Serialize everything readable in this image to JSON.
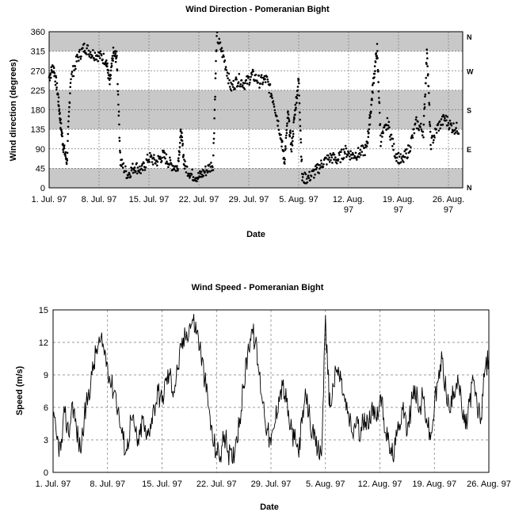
{
  "chart_data": [
    {
      "type": "scatter",
      "title": "Wind Direction - Pomeranian Bight",
      "xlabel": "Date",
      "ylabel": "Wind direction (degrees)",
      "x_ticks": [
        "1. Jul. 97",
        "8. Jul. 97",
        "15. Jul. 97",
        "22. Jul. 97",
        "29. Jul. 97",
        "5. Aug. 97",
        "12. Aug. 97",
        "19. Aug. 97",
        "26. Aug. 97"
      ],
      "x_tick_days": [
        0,
        7,
        14,
        21,
        28,
        35,
        42,
        49,
        56
      ],
      "xlim_days": [
        0,
        58
      ],
      "ylim": [
        0,
        360
      ],
      "y_ticks": [
        "0",
        "45",
        "90",
        "135",
        "180",
        "225",
        "270",
        "315",
        "360"
      ],
      "y_tick_values": [
        0,
        45,
        90,
        135,
        180,
        225,
        270,
        315,
        360
      ],
      "shaded_bands": [
        [
          0,
          45
        ],
        [
          135,
          225
        ],
        [
          315,
          360
        ]
      ],
      "compass_labels": [
        {
          "label": "N",
          "value": 360
        },
        {
          "label": "W",
          "value": 270
        },
        {
          "label": "S",
          "value": 180
        },
        {
          "label": "E",
          "value": 90
        },
        {
          "label": "N",
          "value": 0
        }
      ],
      "series_keypoints": [
        [
          0,
          255
        ],
        [
          0.6,
          280
        ],
        [
          1.2,
          220
        ],
        [
          1.6,
          150
        ],
        [
          2.0,
          95
        ],
        [
          2.5,
          60
        ],
        [
          3.0,
          250
        ],
        [
          4.0,
          300
        ],
        [
          5.0,
          325
        ],
        [
          6.0,
          310
        ],
        [
          7.0,
          305
        ],
        [
          8.0,
          295
        ],
        [
          8.5,
          240
        ],
        [
          9.0,
          310
        ],
        [
          9.5,
          300
        ],
        [
          10.0,
          60
        ],
        [
          11.0,
          30
        ],
        [
          12.0,
          50
        ],
        [
          13.0,
          40
        ],
        [
          14.0,
          70
        ],
        [
          15.0,
          60
        ],
        [
          16.0,
          75
        ],
        [
          17.0,
          55
        ],
        [
          18.0,
          45
        ],
        [
          18.5,
          130
        ],
        [
          19.0,
          50
        ],
        [
          20.0,
          30
        ],
        [
          21.0,
          25
        ],
        [
          22.0,
          40
        ],
        [
          23.0,
          55
        ],
        [
          23.5,
          350
        ],
        [
          24.5,
          300
        ],
        [
          25.5,
          230
        ],
        [
          26.5,
          250
        ],
        [
          27.5,
          240
        ],
        [
          28.5,
          260
        ],
        [
          29.5,
          245
        ],
        [
          30.5,
          250
        ],
        [
          31.5,
          200
        ],
        [
          32.5,
          120
        ],
        [
          33.0,
          60
        ],
        [
          33.5,
          170
        ],
        [
          34.0,
          90
        ],
        [
          34.5,
          180
        ],
        [
          35.0,
          250
        ],
        [
          35.5,
          20
        ],
        [
          36.5,
          25
        ],
        [
          37.5,
          40
        ],
        [
          38.5,
          60
        ],
        [
          39.5,
          70
        ],
        [
          40.5,
          65
        ],
        [
          41.5,
          85
        ],
        [
          42.5,
          75
        ],
        [
          43.5,
          80
        ],
        [
          44.5,
          90
        ],
        [
          45.0,
          160
        ],
        [
          45.5,
          250
        ],
        [
          46.0,
          320
        ],
        [
          46.5,
          110
        ],
        [
          47.5,
          150
        ],
        [
          48.5,
          80
        ],
        [
          49.5,
          60
        ],
        [
          50.5,
          90
        ],
        [
          51.5,
          150
        ],
        [
          52.5,
          130
        ],
        [
          53.0,
          320
        ],
        [
          53.5,
          100
        ],
        [
          54.5,
          140
        ],
        [
          55.5,
          160
        ],
        [
          56.5,
          140
        ],
        [
          57.5,
          135
        ]
      ]
    },
    {
      "type": "line",
      "title": "Wind Speed - Pomeranian Bight",
      "xlabel": "Date",
      "ylabel": "Speed (m/s)",
      "x_ticks": [
        "1. Jul. 97",
        "8. Jul. 97",
        "15. Jul. 97",
        "22. Jul. 97",
        "29. Jul. 97",
        "5. Aug. 97",
        "12. Aug. 97",
        "19. Aug. 97",
        "26. Aug. 97"
      ],
      "x_tick_days": [
        0,
        7,
        14,
        21,
        28,
        35,
        42,
        49,
        56
      ],
      "xlim_days": [
        0,
        56
      ],
      "ylim": [
        0,
        15
      ],
      "y_ticks": [
        "0",
        "3",
        "6",
        "9",
        "12",
        "15"
      ],
      "y_tick_values": [
        0,
        3,
        6,
        9,
        12,
        15
      ],
      "series_keypoints": [
        [
          0,
          5.0
        ],
        [
          0.5,
          3.0
        ],
        [
          1.0,
          2.0
        ],
        [
          1.5,
          5.5
        ],
        [
          2.0,
          3.5
        ],
        [
          2.5,
          6.5
        ],
        [
          3.0,
          4.0
        ],
        [
          3.5,
          2.0
        ],
        [
          4.0,
          5.0
        ],
        [
          4.5,
          7.0
        ],
        [
          5.0,
          9.0
        ],
        [
          5.5,
          11.0
        ],
        [
          6.0,
          12.0
        ],
        [
          6.5,
          11.5
        ],
        [
          7.0,
          10.0
        ],
        [
          7.5,
          8.0
        ],
        [
          8.0,
          7.5
        ],
        [
          8.5,
          5.0
        ],
        [
          9.0,
          3.0
        ],
        [
          9.5,
          2.0
        ],
        [
          10.0,
          5.0
        ],
        [
          10.5,
          4.0
        ],
        [
          11.0,
          2.5
        ],
        [
          11.5,
          5.0
        ],
        [
          12.0,
          3.0
        ],
        [
          12.5,
          4.5
        ],
        [
          13.0,
          6.0
        ],
        [
          13.5,
          7.5
        ],
        [
          14.0,
          6.5
        ],
        [
          14.5,
          8.5
        ],
        [
          15.0,
          9.0
        ],
        [
          15.5,
          7.5
        ],
        [
          16.0,
          9.5
        ],
        [
          16.5,
          11.5
        ],
        [
          17.0,
          12.5
        ],
        [
          17.5,
          13.5
        ],
        [
          18.0,
          14.0
        ],
        [
          18.5,
          13.0
        ],
        [
          19.0,
          11.0
        ],
        [
          19.5,
          8.5
        ],
        [
          20.0,
          6.0
        ],
        [
          20.5,
          3.0
        ],
        [
          21.0,
          2.0
        ],
        [
          21.5,
          1.5
        ],
        [
          22.0,
          3.5
        ],
        [
          22.5,
          2.0
        ],
        [
          23.0,
          1.0
        ],
        [
          23.5,
          3.0
        ],
        [
          24.0,
          5.0
        ],
        [
          24.5,
          8.0
        ],
        [
          25.0,
          11.0
        ],
        [
          25.5,
          13.2
        ],
        [
          26.0,
          12.0
        ],
        [
          26.5,
          9.0
        ],
        [
          27.0,
          6.5
        ],
        [
          27.5,
          4.0
        ],
        [
          28.0,
          2.5
        ],
        [
          28.5,
          4.5
        ],
        [
          29.0,
          7.0
        ],
        [
          29.5,
          8.0
        ],
        [
          30.0,
          6.5
        ],
        [
          30.5,
          4.0
        ],
        [
          31.0,
          3.0
        ],
        [
          31.5,
          2.0
        ],
        [
          32.0,
          4.5
        ],
        [
          32.5,
          7.0
        ],
        [
          33.0,
          5.0
        ],
        [
          33.5,
          3.0
        ],
        [
          34.0,
          2.0
        ],
        [
          34.5,
          1.5
        ],
        [
          35.0,
          14.5
        ],
        [
          35.3,
          9.0
        ],
        [
          35.6,
          6.0
        ],
        [
          36.0,
          8.0
        ],
        [
          36.5,
          9.5
        ],
        [
          37.0,
          8.5
        ],
        [
          37.5,
          6.5
        ],
        [
          38.0,
          5.0
        ],
        [
          38.5,
          3.5
        ],
        [
          39.0,
          5.0
        ],
        [
          39.5,
          3.0
        ],
        [
          40.0,
          5.5
        ],
        [
          40.5,
          4.0
        ],
        [
          41.0,
          6.5
        ],
        [
          41.5,
          5.0
        ],
        [
          42.0,
          7.0
        ],
        [
          42.5,
          5.0
        ],
        [
          43.0,
          3.0
        ],
        [
          43.5,
          1.5
        ],
        [
          44.0,
          2.5
        ],
        [
          44.5,
          4.5
        ],
        [
          45.0,
          6.5
        ],
        [
          45.5,
          3.5
        ],
        [
          46.0,
          6.0
        ],
        [
          46.5,
          8.0
        ],
        [
          47.0,
          5.5
        ],
        [
          47.5,
          7.0
        ],
        [
          48.0,
          5.0
        ],
        [
          48.5,
          3.0
        ],
        [
          49.0,
          6.0
        ],
        [
          49.5,
          8.5
        ],
        [
          50.0,
          10.5
        ],
        [
          50.5,
          7.5
        ],
        [
          51.0,
          5.5
        ],
        [
          51.5,
          7.5
        ],
        [
          52.0,
          9.0
        ],
        [
          52.5,
          6.0
        ],
        [
          53.0,
          4.0
        ],
        [
          53.5,
          6.5
        ],
        [
          54.0,
          8.5
        ],
        [
          54.5,
          6.0
        ],
        [
          55.0,
          5.0
        ],
        [
          55.5,
          9.5
        ],
        [
          56.0,
          10.5
        ]
      ]
    }
  ]
}
